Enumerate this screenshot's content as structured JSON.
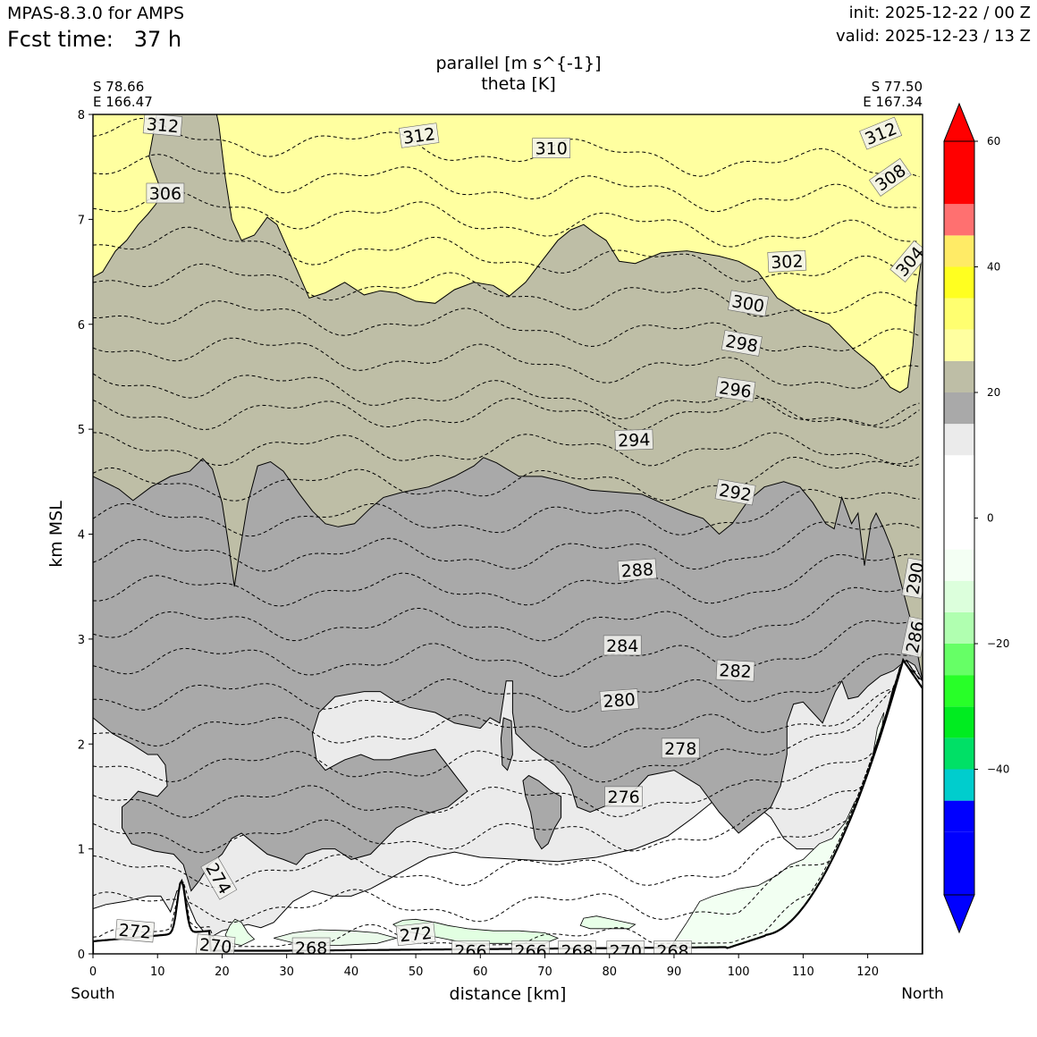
{
  "header": {
    "model": "MPAS-8.3.0 for AMPS",
    "fcst_label": "Fcst time:",
    "fcst_value": "37 h",
    "init": "init: 2025-12-22 / 00 Z",
    "valid": "valid: 2025-12-23 / 13 Z"
  },
  "chart_data": {
    "type": "cross-section contour",
    "title_line1": "parallel [m s^{-1}]",
    "title_line2": "theta [K]",
    "start_point": {
      "lat": "S 78.66",
      "lon": "E 166.47"
    },
    "end_point": {
      "lat": "S 77.50",
      "lon": "E 167.34"
    },
    "xlabel": "distance [km]",
    "ylabel": "km MSL",
    "x_left_label": "South",
    "x_right_label": "North",
    "xlim": [
      0,
      128.5
    ],
    "ylim": [
      0,
      8
    ],
    "xticks": [
      0,
      10,
      20,
      30,
      40,
      50,
      60,
      70,
      80,
      90,
      100,
      110,
      120
    ],
    "yticks": [
      0,
      1,
      2,
      3,
      4,
      5,
      6,
      7,
      8
    ],
    "theta_contours_K": [
      266,
      268,
      270,
      272,
      274,
      276,
      278,
      280,
      282,
      284,
      286,
      288,
      290,
      292,
      294,
      296,
      298,
      300,
      302,
      304,
      306,
      308,
      310,
      312
    ],
    "theta_labels": [
      {
        "text": "312",
        "x": 10.8,
        "y": 7.9,
        "rot": -5
      },
      {
        "text": "312",
        "x": 50.5,
        "y": 7.8,
        "rot": 8
      },
      {
        "text": "310",
        "x": 71,
        "y": 7.68,
        "rot": 0
      },
      {
        "text": "312",
        "x": 122,
        "y": 7.82,
        "rot": 22
      },
      {
        "text": "306",
        "x": 11.2,
        "y": 7.25,
        "rot": 0
      },
      {
        "text": "308",
        "x": 123.5,
        "y": 7.4,
        "rot": 35
      },
      {
        "text": "304",
        "x": 126.5,
        "y": 6.6,
        "rot": 50
      },
      {
        "text": "302",
        "x": 107.5,
        "y": 6.6,
        "rot": 3
      },
      {
        "text": "300",
        "x": 101.5,
        "y": 6.2,
        "rot": -10
      },
      {
        "text": "298",
        "x": 100.5,
        "y": 5.82,
        "rot": -10
      },
      {
        "text": "296",
        "x": 99.5,
        "y": 5.38,
        "rot": -8
      },
      {
        "text": "294",
        "x": 83.8,
        "y": 4.9,
        "rot": 2
      },
      {
        "text": "292",
        "x": 99.5,
        "y": 4.4,
        "rot": -10
      },
      {
        "text": "290",
        "x": 127.3,
        "y": 3.58,
        "rot": 80
      },
      {
        "text": "288",
        "x": 84.3,
        "y": 3.66,
        "rot": 4
      },
      {
        "text": "286",
        "x": 127.3,
        "y": 3.02,
        "rot": 78
      },
      {
        "text": "284",
        "x": 82,
        "y": 2.94,
        "rot": 0
      },
      {
        "text": "282",
        "x": 99.5,
        "y": 2.7,
        "rot": -3
      },
      {
        "text": "280",
        "x": 81.5,
        "y": 2.42,
        "rot": 4
      },
      {
        "text": "278",
        "x": 91,
        "y": 1.96,
        "rot": 0
      },
      {
        "text": "276",
        "x": 82.2,
        "y": 1.5,
        "rot": 0
      },
      {
        "text": "274",
        "x": 19.5,
        "y": 0.72,
        "rot": -60
      },
      {
        "text": "272",
        "x": 6.5,
        "y": 0.22,
        "rot": -5
      },
      {
        "text": "272",
        "x": 50,
        "y": 0.19,
        "rot": 6
      },
      {
        "text": "270",
        "x": 19,
        "y": 0.08,
        "rot": -5
      },
      {
        "text": "268",
        "x": 33.8,
        "y": 0.06,
        "rot": 0
      },
      {
        "text": "266",
        "x": 58.5,
        "y": 0.03,
        "rot": 0
      },
      {
        "text": "266",
        "x": 67.8,
        "y": 0.03,
        "rot": 0
      },
      {
        "text": "268",
        "x": 75,
        "y": 0.03,
        "rot": 0
      },
      {
        "text": "270",
        "x": 82.5,
        "y": 0.03,
        "rot": 0
      },
      {
        "text": "268",
        "x": 89.8,
        "y": 0.03,
        "rot": 0
      }
    ],
    "colorbar": {
      "ticks": [
        60,
        40,
        20,
        0,
        -20,
        -40
      ],
      "range": [
        -60,
        60
      ],
      "levels": [
        -55,
        -50,
        -45,
        -40,
        -35,
        -30,
        -25,
        -20,
        -15,
        -10,
        -5,
        0,
        5,
        10,
        15,
        20,
        25,
        30,
        35,
        40,
        45,
        50,
        55
      ],
      "colors": [
        "#0000ff",
        "#0000ff",
        "#00cdcd",
        "#00e066",
        "#00ec20",
        "#28ff28",
        "#66ff66",
        "#b0ffb0",
        "#dcffdc",
        "#f4fff4",
        "#ffffff",
        "#ffffff",
        "#ffffff",
        "#ebebeb",
        "#a9a9a9",
        "#bebea6",
        "#ffffa0",
        "#ffff70",
        "#ffff20",
        "#ffeb66",
        "#ff7070",
        "#ff0000"
      ],
      "extend_below": "#0000ff",
      "extend_above": "#ff0000"
    }
  }
}
